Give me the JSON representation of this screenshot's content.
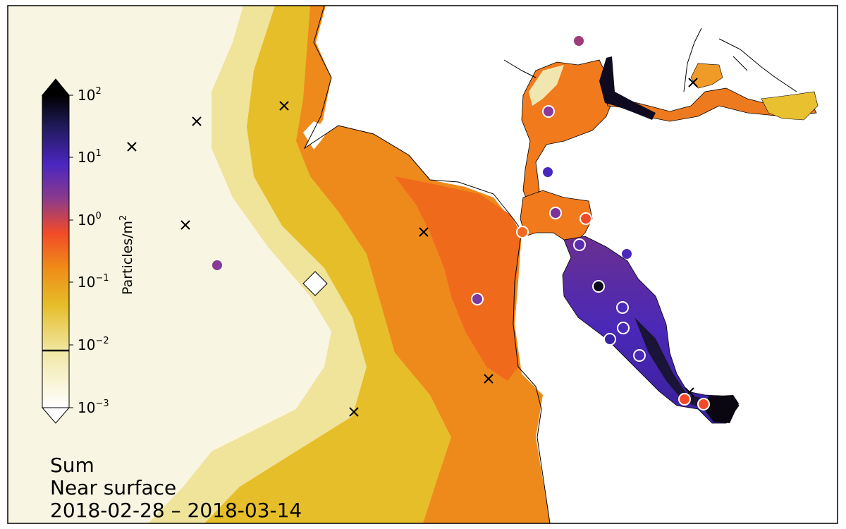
{
  "colorbar": {
    "ticks": [
      {
        "base": "10",
        "exp": "2"
      },
      {
        "base": "10",
        "exp": "1"
      },
      {
        "base": "10",
        "exp": "0"
      },
      {
        "base": "10",
        "exp": "−1"
      },
      {
        "base": "10",
        "exp": "−2"
      },
      {
        "base": "10",
        "exp": "−3"
      }
    ],
    "label_text": "Particles/m",
    "label_exp": "2",
    "threshold_value": 0.008,
    "extend": "both"
  },
  "caption": {
    "line1": "Sum",
    "line2": "Near surface",
    "line3": "2018-02-28 – 2018-03-14"
  },
  "colors": {
    "ocean_background": "#f8f6e2",
    "light_yellow": "#f0e39a",
    "yellow": "#e6be2a",
    "orange": "#f07018",
    "red_orange": "#f24a28",
    "purple": "#7e3a9a",
    "blue_purple": "#4a28b8",
    "dark": "#120c2a"
  }
}
